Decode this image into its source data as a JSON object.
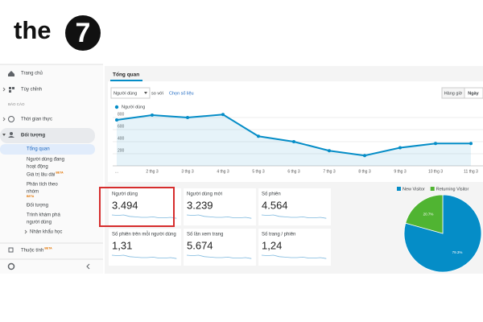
{
  "logo": {
    "text": "the",
    "badge": "7"
  },
  "sidebar": {
    "items": [
      {
        "label": [
          "Trang chủ"
        ]
      },
      {
        "label": [
          "Tùy chỉnh"
        ]
      },
      {
        "label": [
          "BÁO CÁO"
        ]
      },
      {
        "label": [
          "Thời gian thực"
        ]
      },
      {
        "label": [
          "Đối tượng"
        ]
      },
      {
        "label": [
          "Tổng quan"
        ]
      },
      {
        "label": [
          "Người dùng đang",
          "hoạt động"
        ]
      },
      {
        "label": [
          "Giá trị lâu dài"
        ],
        "badge": "BETA"
      },
      {
        "label": [
          "Phân tích theo",
          "nhóm"
        ],
        "badge": "BETA"
      },
      {
        "label": [
          "Đối tượng"
        ]
      },
      {
        "label": [
          "Trình khám phá",
          "người dùng"
        ]
      },
      {
        "label": [
          "Nhân khẩu học"
        ]
      },
      {
        "label": [
          "Thuộc tính"
        ],
        "badge": "BETA"
      }
    ]
  },
  "tab": "Tổng quan",
  "controls": {
    "metric": "Người dùng",
    "compare": "so với",
    "choose": "Chọn số liệu",
    "buttons": [
      "Hàng giờ",
      "Ngày"
    ]
  },
  "metrics": [
    {
      "label": "Người dùng",
      "value": "3.494"
    },
    {
      "label": "Người dùng mới",
      "value": "3.239"
    },
    {
      "label": "Số phiên",
      "value": "4.564"
    },
    {
      "label": "Số phiên trên mỗi người dùng",
      "value": "1,31"
    },
    {
      "label": "Số lần xem trang",
      "value": "5.674"
    },
    {
      "label": "Số trang / phiên",
      "value": "1,24"
    }
  ],
  "chart_data": [
    {
      "type": "line",
      "series": [
        {
          "name": "Người dùng",
          "color": "#058dc7",
          "values": [
            760,
            840,
            800,
            850,
            490,
            400,
            250,
            170,
            300,
            370,
            370
          ]
        }
      ],
      "categories": [
        "...",
        "2 thg 3",
        "3 thg 3",
        "4 thg 3",
        "5 thg 3",
        "6 thg 3",
        "7 thg 3",
        "8 thg 3",
        "9 thg 3",
        "10 thg 3",
        "11 thg 3"
      ],
      "ylim": [
        0,
        880
      ],
      "yticks": [
        200,
        400,
        600,
        800
      ],
      "grid": true
    },
    {
      "type": "pie",
      "categories": [
        "New Visitor",
        "Returning Visitor"
      ],
      "colors": [
        "#058dc7",
        "#50b432"
      ],
      "values": [
        79.3,
        20.7
      ],
      "value_labels": [
        "79.3%",
        "20.7%"
      ],
      "legend": "top"
    }
  ]
}
